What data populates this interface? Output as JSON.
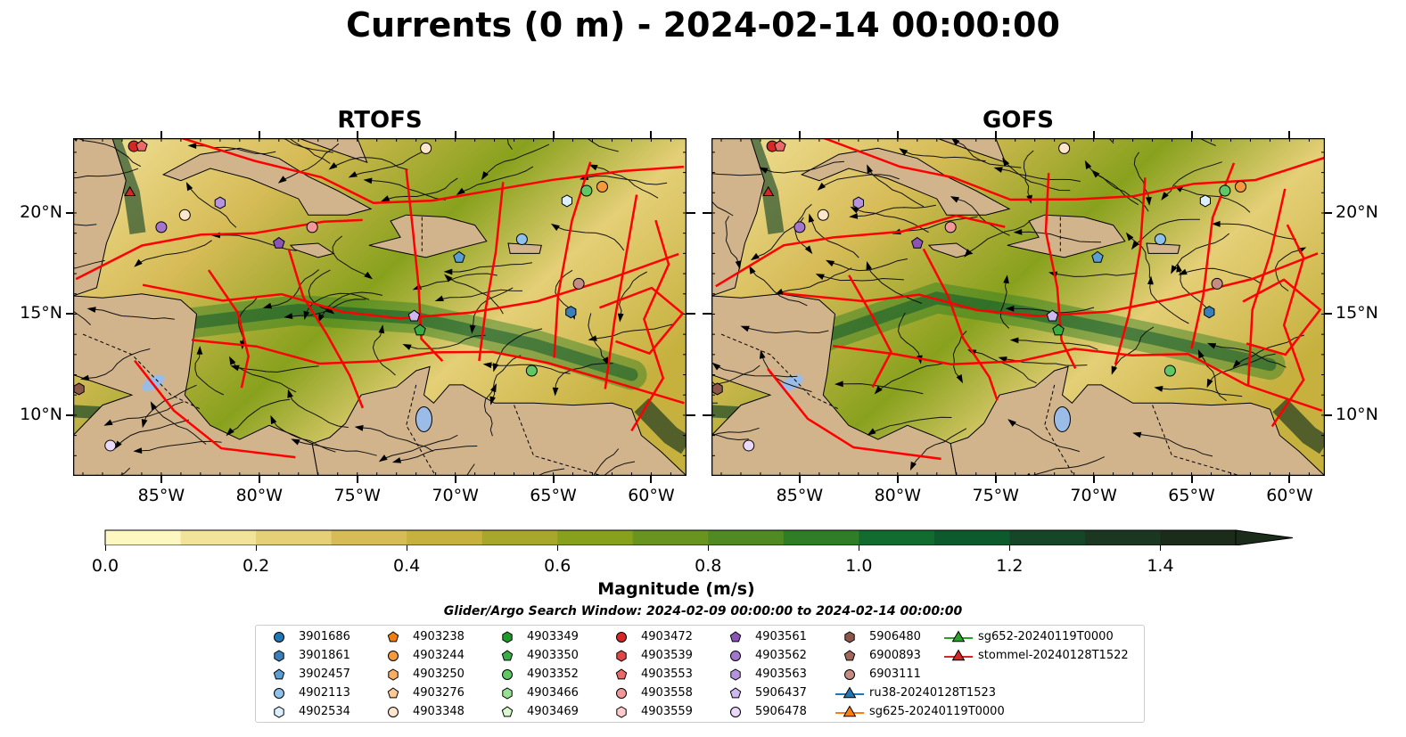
{
  "title": "Currents (0 m) - 2024-02-14 00:00:00",
  "panels": [
    {
      "title": "RTOFS"
    },
    {
      "title": "GOFS"
    }
  ],
  "lon_ticks": [
    "85°W",
    "80°W",
    "75°W",
    "70°W",
    "65°W",
    "60°W"
  ],
  "lat_ticks": [
    "20°N",
    "15°N",
    "10°N"
  ],
  "extent": {
    "lon": [
      -89.5,
      -58.2
    ],
    "lat": [
      7.0,
      23.7
    ]
  },
  "colorbar": {
    "label": "Magnitude (m/s)",
    "ticks": [
      "0.0",
      "0.2",
      "0.4",
      "0.6",
      "0.8",
      "1.0",
      "1.2",
      "1.4"
    ],
    "range": [
      0.0,
      1.5
    ],
    "colors": [
      "#fdf7c2",
      "#f2e39b",
      "#e5cf77",
      "#d6bb56",
      "#c6b13f",
      "#a9a72b",
      "#88a11d",
      "#6a9420",
      "#4f8a22",
      "#2f7d27",
      "#136c2f",
      "#0d5a2c",
      "#164628",
      "#1b3722",
      "#1b2c1a"
    ],
    "extend": "max"
  },
  "search_window": "Glider/Argo Search Window: 2024-02-09 00:00:00 to 2024-02-14 00:00:00",
  "colors": {
    "land": "#d2b48c",
    "tracks": "#ff0000",
    "lakes": "#9bbce6"
  },
  "legend": [
    {
      "label": "3901686",
      "marker": "circle",
      "color": "#1f77b4"
    },
    {
      "label": "3901861",
      "marker": "hexagon",
      "color": "#3a7fb8"
    },
    {
      "label": "3902457",
      "marker": "pentagon",
      "color": "#5a9fd4"
    },
    {
      "label": "4902113",
      "marker": "circle",
      "color": "#8fc1ea"
    },
    {
      "label": "4902534",
      "marker": "hexagon",
      "color": "#dcefff"
    },
    {
      "label": "4903238",
      "marker": "pentagon",
      "color": "#f07f0e"
    },
    {
      "label": "4903244",
      "marker": "circle",
      "color": "#f59a3c"
    },
    {
      "label": "4903250",
      "marker": "hexagon",
      "color": "#f7ad64"
    },
    {
      "label": "4903276",
      "marker": "pentagon",
      "color": "#fbcb95"
    },
    {
      "label": "4903348",
      "marker": "circle",
      "color": "#fde6cc"
    },
    {
      "label": "4903349",
      "marker": "hexagon",
      "color": "#1e9a2a"
    },
    {
      "label": "4903350",
      "marker": "pentagon",
      "color": "#3aae45"
    },
    {
      "label": "4903352",
      "marker": "circle",
      "color": "#5fc865"
    },
    {
      "label": "4903466",
      "marker": "hexagon",
      "color": "#98e094"
    },
    {
      "label": "4903469",
      "marker": "pentagon",
      "color": "#d8f8cf"
    },
    {
      "label": "4903472",
      "marker": "circle",
      "color": "#d62728"
    },
    {
      "label": "4903539",
      "marker": "hexagon",
      "color": "#e04848"
    },
    {
      "label": "4903553",
      "marker": "pentagon",
      "color": "#ea6a6a"
    },
    {
      "label": "4903558",
      "marker": "circle",
      "color": "#f29898"
    },
    {
      "label": "4903559",
      "marker": "hexagon",
      "color": "#fccccc"
    },
    {
      "label": "4903561",
      "marker": "pentagon",
      "color": "#8a55b5"
    },
    {
      "label": "4903562",
      "marker": "circle",
      "color": "#a475cc"
    },
    {
      "label": "4903563",
      "marker": "hexagon",
      "color": "#b693de"
    },
    {
      "label": "5906437",
      "marker": "pentagon",
      "color": "#cfb8ef"
    },
    {
      "label": "5906478",
      "marker": "circle",
      "color": "#ead9fb"
    },
    {
      "label": "5906480",
      "marker": "hexagon",
      "color": "#8c564b"
    },
    {
      "label": "6900893",
      "marker": "pentagon",
      "color": "#a0685c"
    },
    {
      "label": "6903111",
      "marker": "circle",
      "color": "#c48c83"
    },
    {
      "label": "ru38-20240128T1523",
      "marker": "triangle-line",
      "color": "#1f77b4"
    },
    {
      "label": "sg625-20240119T0000",
      "marker": "triangle-line",
      "color": "#ff7f0e"
    },
    {
      "label": "sg652-20240119T0000",
      "marker": "triangle-line",
      "color": "#2ca02c"
    },
    {
      "label": "stommel-20240128T1522",
      "marker": "triangle-line",
      "color": "#d62728"
    }
  ],
  "floats": [
    {
      "id": "4903472",
      "lon": -86.4,
      "lat": 23.3,
      "marker": "circle",
      "color": "#d62728"
    },
    {
      "id": "4903553",
      "lon": -86.0,
      "lat": 23.3,
      "marker": "pentagon",
      "color": "#ea6a6a"
    },
    {
      "id": "stommel-20240128T1522",
      "lon": -86.6,
      "lat": 21.0,
      "marker": "triangle",
      "color": "#d62728"
    },
    {
      "id": "4903348",
      "lon": -83.8,
      "lat": 19.9,
      "marker": "circle",
      "color": "#fde6cc"
    },
    {
      "id": "4903562",
      "lon": -85.0,
      "lat": 19.3,
      "marker": "circle",
      "color": "#a475cc"
    },
    {
      "id": "4903563",
      "lon": -82.0,
      "lat": 20.5,
      "marker": "hexagon",
      "color": "#b693de"
    },
    {
      "id": "4903561",
      "lon": -79.0,
      "lat": 18.5,
      "marker": "pentagon",
      "color": "#8a55b5"
    },
    {
      "id": "4903558",
      "lon": -77.3,
      "lat": 19.3,
      "marker": "circle",
      "color": "#f29898"
    },
    {
      "id": "3902457",
      "lon": -69.8,
      "lat": 17.8,
      "marker": "pentagon",
      "color": "#5a9fd4"
    },
    {
      "id": "4902113",
      "lon": -66.6,
      "lat": 18.7,
      "marker": "circle",
      "color": "#8fc1ea"
    },
    {
      "id": "4902534",
      "lon": -64.3,
      "lat": 20.6,
      "marker": "hexagon",
      "color": "#dcefff"
    },
    {
      "id": "4903352",
      "lon": -63.3,
      "lat": 21.1,
      "marker": "circle",
      "color": "#5fc865"
    },
    {
      "id": "4903244",
      "lon": -62.5,
      "lat": 21.3,
      "marker": "circle",
      "color": "#f59a3c"
    },
    {
      "id": "6903111",
      "lon": -63.7,
      "lat": 16.5,
      "marker": "circle",
      "color": "#c48c83"
    },
    {
      "id": "3901861",
      "lon": -64.1,
      "lat": 15.1,
      "marker": "hexagon",
      "color": "#3a7fb8"
    },
    {
      "id": "5906437",
      "lon": -72.1,
      "lat": 14.9,
      "marker": "pentagon",
      "color": "#cfb8ef"
    },
    {
      "id": "4903350",
      "lon": -71.8,
      "lat": 14.2,
      "marker": "pentagon",
      "color": "#3aae45"
    },
    {
      "id": "4903352b",
      "lon": -66.1,
      "lat": 12.2,
      "marker": "circle",
      "color": "#5fc865"
    },
    {
      "id": "5906480",
      "lon": -89.2,
      "lat": 11.3,
      "marker": "hexagon",
      "color": "#8c564b"
    },
    {
      "id": "5906478",
      "lon": -87.6,
      "lat": 8.5,
      "marker": "circle",
      "color": "#ead9fb"
    },
    {
      "id": "4903348b",
      "lon": -71.5,
      "lat": 23.2,
      "marker": "circle",
      "color": "#fde6cc"
    }
  ]
}
